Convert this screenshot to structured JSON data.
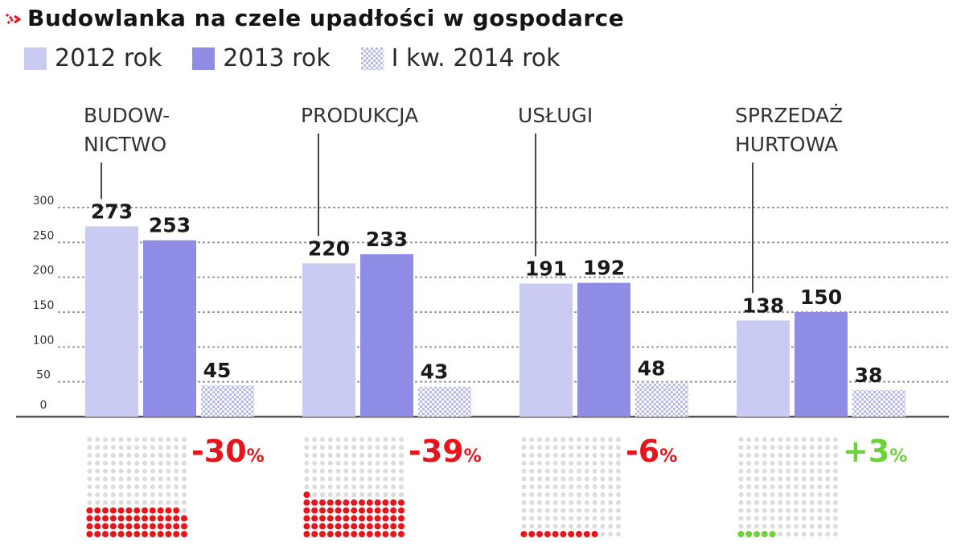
{
  "title": "Budowlanka na czele upadłości w gospodarce",
  "legend": {
    "items": [
      {
        "label": "2012 rok"
      },
      {
        "label": "2013 rok"
      },
      {
        "label": "I kw. 2014 rok"
      }
    ]
  },
  "colors": {
    "series_2012": "#c9cbf3",
    "series_2013": "#8f8ce6",
    "series_2014": "#b9bbef",
    "negative": "#e8141b",
    "positive": "#6bd23a",
    "dot_empty": "#dcdcdc",
    "grid": "#9a9a9a",
    "marker": "#e8141b"
  },
  "chart_data": {
    "type": "bar",
    "title": "Budowlanka na czele upadłości w gospodarce",
    "xlabel": "",
    "ylabel": "",
    "ylim": [
      0,
      300
    ],
    "yticks": [
      0,
      50,
      100,
      150,
      200,
      250,
      300
    ],
    "grid": true,
    "legend_position": "top-left",
    "categories": [
      {
        "lines": [
          "BUDOW-",
          "NICTWO"
        ]
      },
      {
        "lines": [
          "PRODUKCJA"
        ]
      },
      {
        "lines": [
          "USŁUGI"
        ]
      },
      {
        "lines": [
          "SPRZEDAŻ",
          "HURTOWA"
        ]
      }
    ],
    "series": [
      {
        "name": "2012 rok",
        "values": [
          273,
          220,
          191,
          138
        ]
      },
      {
        "name": "2013 rok",
        "values": [
          253,
          233,
          192,
          150
        ]
      },
      {
        "name": "I kw. 2014 rok",
        "values": [
          45,
          43,
          48,
          38
        ]
      }
    ],
    "changes": [
      {
        "value": "-30",
        "unit": "%",
        "sign": "negative",
        "magnitude": 30
      },
      {
        "value": "-39",
        "unit": "%",
        "sign": "negative",
        "magnitude": 39
      },
      {
        "value": "-6",
        "unit": "%",
        "sign": "negative",
        "magnitude": 6
      },
      {
        "value": "+3",
        "unit": "%",
        "sign": "positive",
        "magnitude": 3
      }
    ]
  }
}
